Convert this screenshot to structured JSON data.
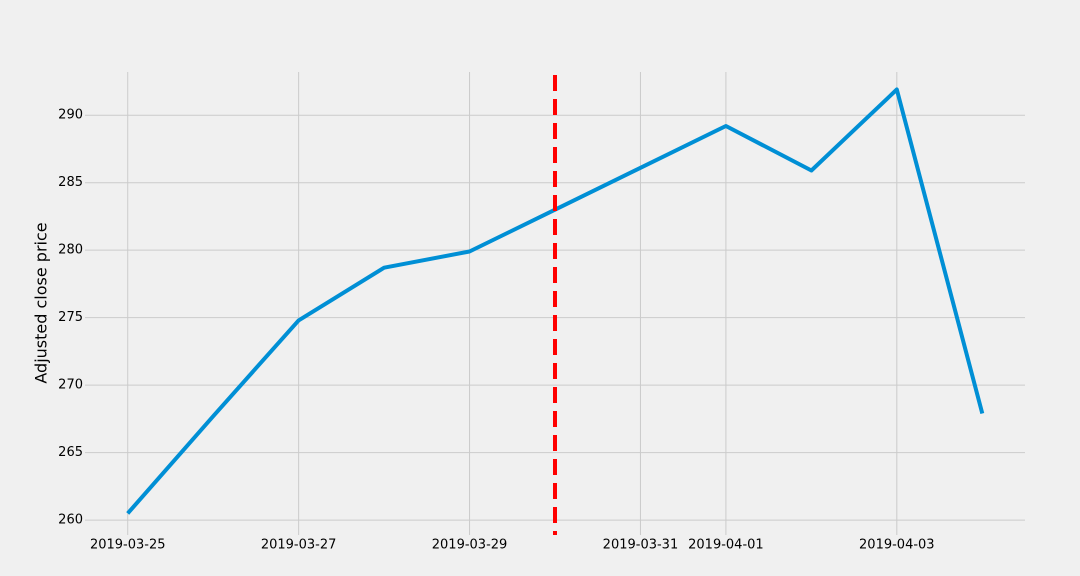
{
  "chart_data": {
    "type": "line",
    "ylabel": "Adjusted close price",
    "x": [
      "2019-03-25",
      "2019-03-26",
      "2019-03-27",
      "2019-03-28",
      "2019-03-29",
      "2019-03-30",
      "2019-03-31",
      "2019-04-01",
      "2019-04-02",
      "2019-04-03",
      "2019-04-04"
    ],
    "values": [
      260.5,
      267.7,
      274.8,
      278.7,
      279.9,
      283.0,
      286.1,
      289.2,
      285.9,
      291.9,
      267.9
    ],
    "color": "#008fd5",
    "xlim": [
      "2019-03-24T12:00:00Z",
      "2019-04-04T12:00:00Z"
    ],
    "xticks": [
      "2019-03-25",
      "2019-03-27",
      "2019-03-29",
      "2019-03-31",
      "2019-04-01",
      "2019-04-03"
    ],
    "ylim": [
      258.9,
      293.2
    ],
    "yticks": [
      260,
      265,
      270,
      275,
      280,
      285,
      290
    ],
    "vline": {
      "x": "2019-03-30",
      "color": "#ff0000",
      "style": "dashed"
    },
    "grid": true
  }
}
